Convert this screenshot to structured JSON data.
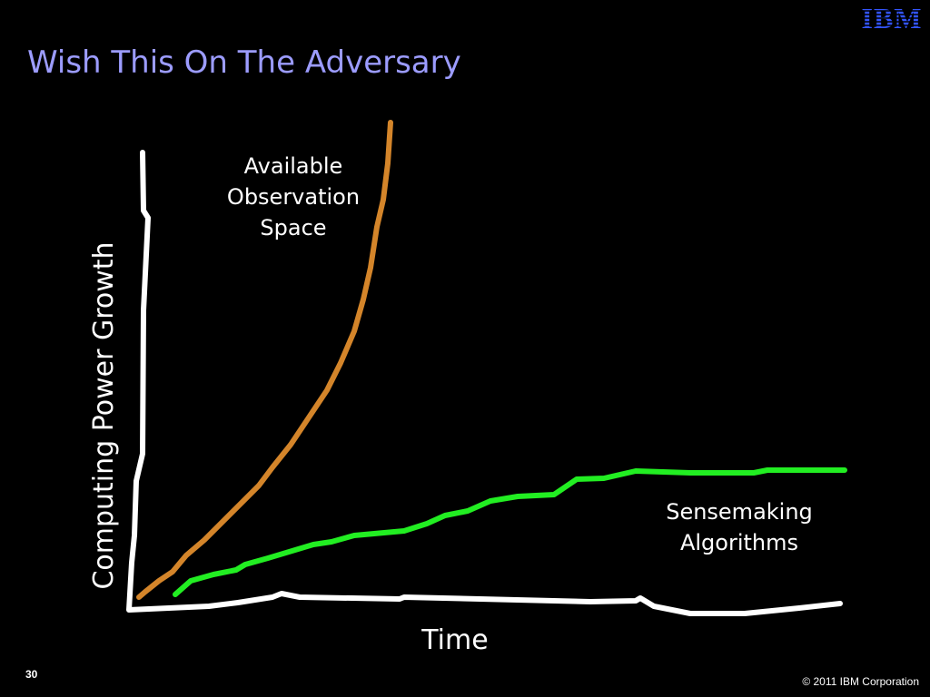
{
  "header": {
    "title": "Wish This On The Adversary",
    "logo": "IBM"
  },
  "diagram": {
    "y_axis_label": "Computing Power Growth",
    "x_axis_label": "Time",
    "curves": [
      {
        "label_lines": [
          "Available",
          "Observation",
          "Space"
        ]
      },
      {
        "label_lines": [
          "Sensemaking",
          "Algorithms"
        ]
      }
    ]
  },
  "footer": {
    "page_number": "30",
    "copyright": "© 2011 IBM Corporation"
  }
}
